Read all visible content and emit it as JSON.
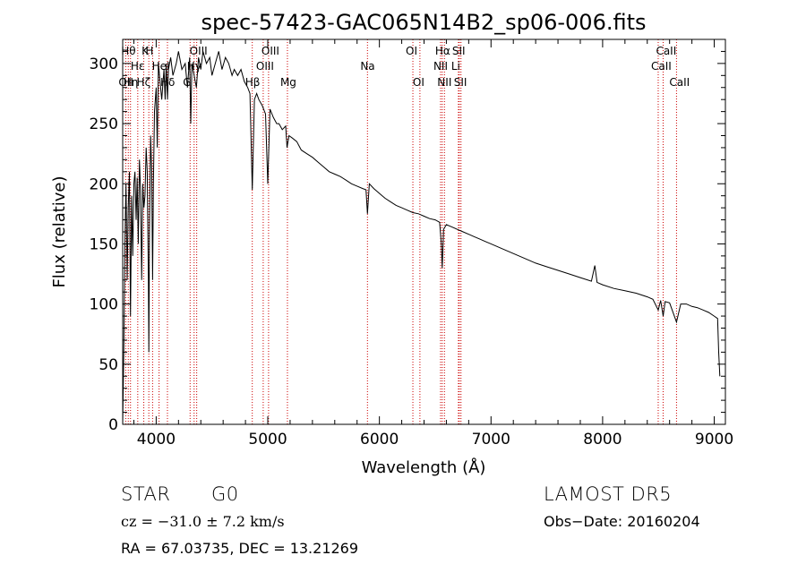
{
  "chart_data": {
    "type": "line",
    "title": "spec-57423-GAC065N14B2_sp06-006.fits",
    "xlabel": "Wavelength (Å)",
    "ylabel": "Flux (relative)",
    "xlim": [
      3700,
      9100
    ],
    "ylim": [
      0,
      320
    ],
    "xticks": [
      4000,
      5000,
      6000,
      7000,
      8000,
      9000
    ],
    "yticks": [
      0,
      50,
      100,
      150,
      200,
      250,
      300
    ],
    "grid": false,
    "series": [
      {
        "x": [
          3700,
          3710,
          3720,
          3730,
          3740,
          3750,
          3760,
          3770,
          3780,
          3790,
          3800,
          3810,
          3820,
          3830,
          3840,
          3850,
          3860,
          3870,
          3880,
          3890,
          3900,
          3910,
          3920,
          3930,
          3934,
          3940,
          3950,
          3960,
          3968,
          3975,
          3985,
          4000,
          4010,
          4020,
          4030,
          4050,
          4070,
          4080,
          4090,
          4101,
          4110,
          4130,
          4150,
          4180,
          4200,
          4230,
          4260,
          4280,
          4300,
          4310,
          4320,
          4340,
          4360,
          4380,
          4400,
          4420,
          4450,
          4480,
          4500,
          4530,
          4560,
          4590,
          4620,
          4650,
          4680,
          4700,
          4730,
          4760,
          4790,
          4820,
          4840,
          4861,
          4880,
          4900,
          4920,
          4950,
          4980,
          5000,
          5020,
          5050,
          5080,
          5100,
          5130,
          5160,
          5172,
          5190,
          5220,
          5260,
          5300,
          5350,
          5400,
          5450,
          5500,
          5550,
          5600,
          5650,
          5700,
          5750,
          5800,
          5850,
          5880,
          5893,
          5910,
          5950,
          6000,
          6050,
          6100,
          6150,
          6200,
          6250,
          6300,
          6350,
          6400,
          6450,
          6500,
          6540,
          6555,
          6563,
          6575,
          6600,
          6650,
          6700,
          6750,
          6800,
          6850,
          6900,
          6950,
          7000,
          7100,
          7200,
          7300,
          7400,
          7500,
          7600,
          7700,
          7800,
          7900,
          7930,
          7950,
          8000,
          8100,
          8200,
          8300,
          8400,
          8450,
          8498,
          8520,
          8542,
          8560,
          8600,
          8662,
          8700,
          8750,
          8800,
          8850,
          8900,
          8950,
          9000,
          9030,
          9040,
          9050
        ],
        "values": [
          0,
          60,
          150,
          200,
          120,
          180,
          210,
          90,
          190,
          140,
          200,
          210,
          170,
          205,
          150,
          220,
          195,
          120,
          200,
          180,
          190,
          230,
          210,
          120,
          60,
          160,
          240,
          210,
          120,
          200,
          260,
          280,
          230,
          300,
          290,
          270,
          295,
          270,
          300,
          270,
          295,
          305,
          290,
          300,
          310,
          295,
          300,
          280,
          305,
          250,
          300,
          290,
          280,
          305,
          295,
          310,
          300,
          305,
          290,
          300,
          310,
          295,
          305,
          300,
          290,
          295,
          290,
          295,
          285,
          280,
          275,
          195,
          270,
          275,
          270,
          265,
          258,
          200,
          262,
          255,
          250,
          250,
          245,
          248,
          230,
          240,
          238,
          235,
          228,
          225,
          222,
          218,
          214,
          210,
          208,
          206,
          203,
          200,
          198,
          196,
          195,
          175,
          200,
          196,
          192,
          188,
          185,
          182,
          180,
          178,
          176,
          175,
          173,
          171,
          170,
          168,
          150,
          130,
          162,
          166,
          164,
          162,
          160,
          158,
          156,
          154,
          152,
          150,
          146,
          142,
          138,
          134,
          131,
          128,
          125,
          122,
          119,
          132,
          118,
          116,
          113,
          111,
          109,
          106,
          104,
          95,
          103,
          90,
          102,
          101,
          85,
          100,
          100,
          98,
          97,
          95,
          93,
          90,
          88,
          60,
          40
        ]
      }
    ],
    "lines": [
      {
        "x": 3727,
        "label": "OII",
        "row": 2,
        "align": "left"
      },
      {
        "x": 3750,
        "label": "Hθ",
        "row": 0,
        "align": "left"
      },
      {
        "x": 3770,
        "label": "Hη",
        "row": 2,
        "align": "left"
      },
      {
        "x": 3835,
        "label": "Hε",
        "row": 1,
        "align": "left"
      },
      {
        "x": 3889,
        "label": "Hζ",
        "row": 2,
        "align": "left"
      },
      {
        "x": 3934,
        "label": "K",
        "row": 0,
        "align": "left"
      },
      {
        "x": 3968,
        "label": "H",
        "row": 0,
        "align": "left"
      },
      {
        "x": 4026,
        "label": "HeI",
        "row": 1,
        "align": "left"
      },
      {
        "x": 4101,
        "label": "Hδ",
        "row": 2,
        "align": "left"
      },
      {
        "x": 4304,
        "label": "G",
        "row": 2,
        "align": "left"
      },
      {
        "x": 4340,
        "label": "Hγ",
        "row": 1,
        "align": "left"
      },
      {
        "x": 4363,
        "label": "OIII",
        "row": 0,
        "align": "left"
      },
      {
        "x": 4861,
        "label": "Hβ",
        "row": 2,
        "align": "left"
      },
      {
        "x": 4959,
        "label": "OIII",
        "row": 1,
        "align": "left"
      },
      {
        "x": 5007,
        "label": "OIII",
        "row": 0,
        "align": "left"
      },
      {
        "x": 5176,
        "label": "Mg",
        "row": 2,
        "align": "left"
      },
      {
        "x": 5893,
        "label": "Na",
        "row": 1,
        "align": "left"
      },
      {
        "x": 6300,
        "label": "OI",
        "row": 0,
        "align": "left"
      },
      {
        "x": 6363,
        "label": "OI",
        "row": 2,
        "align": "left"
      },
      {
        "x": 6548,
        "label": "NII",
        "row": 1,
        "align": "left"
      },
      {
        "x": 6563,
        "label": "Hα",
        "row": 0,
        "align": "left"
      },
      {
        "x": 6583,
        "label": "NII",
        "row": 2,
        "align": "left"
      },
      {
        "x": 6708,
        "label": "Li",
        "row": 1,
        "align": "left"
      },
      {
        "x": 6716,
        "label": "SII",
        "row": 0,
        "align": "left"
      },
      {
        "x": 6731,
        "label": "SII",
        "row": 2,
        "align": "left"
      },
      {
        "x": 8498,
        "label": "CaII",
        "row": 1,
        "align": "left"
      },
      {
        "x": 8542,
        "label": "CaII",
        "row": 0,
        "align": "left"
      },
      {
        "x": 8662,
        "label": "CaII",
        "row": 2,
        "align": "left"
      }
    ],
    "line_color": "#cc0000",
    "spectrum_color": "#000000"
  },
  "info": {
    "class": "STAR",
    "subclass": "G0",
    "survey": "LAMOST  DR5",
    "cz": "cz = −31.0 ± 7.2 km/s",
    "obs_date": "Obs−Date: 20160204",
    "coords": "RA =  67.03735, DEC =  13.21269"
  }
}
